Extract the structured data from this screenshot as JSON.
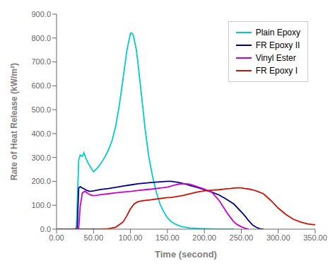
{
  "chart_data": {
    "type": "line",
    "xlabel": "Time (second)",
    "ylabel": "Rate of Heat Release (kW/m²)",
    "xlim": [
      0,
      350
    ],
    "ylim": [
      0,
      900
    ],
    "xticks": [
      {
        "value": 0,
        "label": "0.00"
      },
      {
        "value": 50,
        "label": "50.00"
      },
      {
        "value": 100,
        "label": "100.00"
      },
      {
        "value": 150,
        "label": "150.00"
      },
      {
        "value": 200,
        "label": "200.00"
      },
      {
        "value": 250,
        "label": "250.00"
      },
      {
        "value": 300,
        "label": "300.00"
      },
      {
        "value": 350,
        "label": "350.00"
      }
    ],
    "yticks": [
      {
        "value": 0,
        "label": "0.0"
      },
      {
        "value": 100,
        "label": "100.0"
      },
      {
        "value": 200,
        "label": "200.0"
      },
      {
        "value": 300,
        "label": "300.0"
      },
      {
        "value": 400,
        "label": "400.0"
      },
      {
        "value": 500,
        "label": "500.0"
      },
      {
        "value": 600,
        "label": "600.0"
      },
      {
        "value": 700,
        "label": "700.0"
      },
      {
        "value": 800,
        "label": "800.0"
      },
      {
        "value": 900,
        "label": "900.0"
      }
    ],
    "grid": false,
    "legend": "upper right",
    "series": [
      {
        "name": "Plain Epoxy",
        "color": "#00cccc",
        "x": [
          0,
          5,
          10,
          15,
          20,
          25,
          27,
          30,
          32,
          35,
          37,
          40,
          43,
          46,
          50,
          55,
          60,
          65,
          70,
          75,
          80,
          85,
          90,
          95,
          100,
          102,
          104,
          106,
          108,
          110,
          115,
          120,
          125,
          130,
          135,
          140,
          145,
          150,
          155,
          160,
          165,
          170,
          175,
          180,
          190,
          200,
          210,
          215,
          220,
          230,
          240
        ],
        "values": [
          0,
          0,
          0,
          0,
          0,
          2,
          8,
          290,
          310,
          305,
          320,
          295,
          275,
          260,
          240,
          255,
          275,
          300,
          330,
          370,
          430,
          520,
          630,
          745,
          820,
          820,
          810,
          780,
          750,
          700,
          560,
          415,
          300,
          220,
          155,
          105,
          72,
          48,
          32,
          22,
          15,
          10,
          8,
          5,
          3,
          2,
          1,
          0,
          0,
          0,
          0
        ]
      },
      {
        "name": "FR Epoxy II",
        "color": "#00008b",
        "x": [
          0,
          5,
          10,
          15,
          20,
          25,
          28,
          30,
          32,
          35,
          38,
          40,
          45,
          50,
          55,
          60,
          70,
          80,
          90,
          100,
          110,
          120,
          130,
          140,
          150,
          155,
          160,
          165,
          170,
          175,
          180,
          190,
          200,
          210,
          220,
          230,
          240,
          250,
          255,
          260,
          265,
          270,
          275,
          280
        ],
        "values": [
          0,
          0,
          0,
          0,
          0,
          0,
          3,
          172,
          178,
          172,
          168,
          163,
          158,
          160,
          163,
          166,
          170,
          175,
          180,
          185,
          190,
          193,
          196,
          198,
          200,
          200,
          198,
          196,
          192,
          188,
          183,
          175,
          165,
          155,
          143,
          125,
          105,
          72,
          55,
          35,
          18,
          8,
          2,
          0
        ]
      },
      {
        "name": "Vinyl Ester",
        "color": "#cc00cc",
        "x": [
          0,
          5,
          10,
          15,
          20,
          25,
          28,
          30,
          32,
          35,
          38,
          40,
          43,
          46,
          50,
          55,
          60,
          70,
          80,
          90,
          100,
          110,
          120,
          130,
          140,
          150,
          155,
          160,
          165,
          170,
          175,
          180,
          185,
          190,
          200,
          210,
          220,
          230,
          235,
          240,
          245,
          250,
          255,
          260
        ],
        "values": [
          0,
          0,
          0,
          0,
          0,
          0,
          2,
          5,
          95,
          152,
          158,
          155,
          148,
          143,
          140,
          142,
          145,
          148,
          152,
          155,
          158,
          162,
          165,
          168,
          172,
          176,
          180,
          185,
          188,
          190,
          190,
          188,
          183,
          178,
          168,
          155,
          120,
          72,
          50,
          30,
          18,
          10,
          4,
          0
        ]
      },
      {
        "name": "FR Epoxy I",
        "color": "#cc1100",
        "x": [
          0,
          5,
          10,
          15,
          20,
          25,
          30,
          35,
          40,
          50,
          60,
          70,
          80,
          90,
          95,
          100,
          105,
          110,
          115,
          120,
          125,
          130,
          140,
          150,
          155,
          160,
          170,
          180,
          190,
          200,
          210,
          220,
          225,
          230,
          235,
          240,
          245,
          250,
          255,
          260,
          265,
          270,
          280,
          290,
          300,
          310,
          320,
          330,
          340,
          350
        ],
        "values": [
          0,
          0,
          0,
          0,
          0,
          0,
          0,
          0,
          0,
          0,
          0,
          2,
          8,
          30,
          55,
          85,
          105,
          115,
          118,
          120,
          122,
          124,
          128,
          132,
          133,
          135,
          140,
          148,
          155,
          160,
          163,
          165,
          167,
          169,
          170,
          172,
          173,
          173,
          170,
          168,
          165,
          160,
          148,
          120,
          88,
          62,
          42,
          30,
          22,
          18
        ]
      }
    ]
  }
}
